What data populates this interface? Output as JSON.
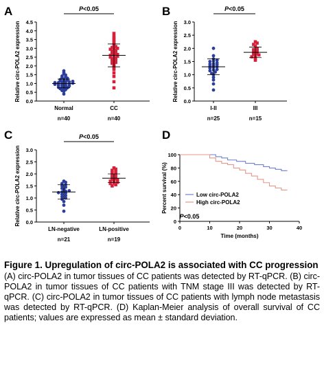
{
  "chart_data": [
    {
      "panel": "A",
      "type": "scatter",
      "ylabel": "Relative circ-POLA2 expression",
      "ylim": [
        0,
        4.5
      ],
      "yticks": [
        "0.0",
        "0.5",
        "1.0",
        "1.5",
        "2.0",
        "2.5",
        "3.0",
        "3.5",
        "4.0",
        "4.5"
      ],
      "significance": "P<0.05",
      "series": [
        {
          "category": "Normal",
          "n": "n=40",
          "color": "#2c3e9c",
          "marker": "circle",
          "mean": 1.0,
          "sd": 0.25,
          "values": [
            0.4,
            0.55,
            0.6,
            0.65,
            0.7,
            0.72,
            0.75,
            0.78,
            0.8,
            0.82,
            0.85,
            0.88,
            0.9,
            0.9,
            0.92,
            0.95,
            0.95,
            0.98,
            1.0,
            1.0,
            1.02,
            1.05,
            1.05,
            1.08,
            1.1,
            1.1,
            1.12,
            1.15,
            1.18,
            1.2,
            1.22,
            1.25,
            1.3,
            1.32,
            1.38,
            1.42,
            1.48,
            1.55,
            1.62,
            1.72
          ]
        },
        {
          "category": "CC",
          "n": "n=40",
          "color": "#d6203a",
          "marker": "square",
          "mean": 2.6,
          "sd": 0.65,
          "values": [
            0.75,
            1.1,
            1.4,
            1.6,
            1.8,
            1.9,
            2.0,
            2.1,
            2.15,
            2.2,
            2.25,
            2.3,
            2.35,
            2.4,
            2.45,
            2.5,
            2.5,
            2.55,
            2.6,
            2.6,
            2.65,
            2.7,
            2.7,
            2.75,
            2.8,
            2.85,
            2.9,
            2.95,
            3.0,
            3.0,
            3.05,
            3.1,
            3.15,
            3.2,
            3.3,
            3.4,
            3.5,
            3.6,
            3.7,
            3.85
          ]
        }
      ]
    },
    {
      "panel": "B",
      "type": "scatter",
      "ylabel": "Relative circ-POLA2 expression",
      "ylim": [
        0,
        3.0
      ],
      "yticks": [
        "0.0",
        "0.5",
        "1.0",
        "1.5",
        "2.0",
        "2.5",
        "3.0"
      ],
      "significance": "P<0.05",
      "series": [
        {
          "category": "I-II",
          "n": "n=25",
          "color": "#2c3e9c",
          "marker": "circle",
          "mean": 1.3,
          "sd": 0.3,
          "values": [
            0.42,
            0.65,
            0.8,
            0.9,
            1.0,
            1.05,
            1.1,
            1.15,
            1.18,
            1.2,
            1.25,
            1.28,
            1.3,
            1.32,
            1.35,
            1.38,
            1.4,
            1.42,
            1.45,
            1.5,
            1.52,
            1.55,
            1.6,
            1.72,
            2.0
          ]
        },
        {
          "category": "III",
          "n": "n=15",
          "color": "#d6203a",
          "marker": "square",
          "mean": 1.85,
          "sd": 0.2,
          "values": [
            1.55,
            1.62,
            1.68,
            1.72,
            1.75,
            1.78,
            1.8,
            1.85,
            1.9,
            1.95,
            2.0,
            2.08,
            2.15,
            2.2,
            2.25
          ]
        }
      ]
    },
    {
      "panel": "C",
      "type": "scatter",
      "ylabel": "Relative circ-POLA2 expression",
      "ylim": [
        0,
        3.0
      ],
      "yticks": [
        "0.0",
        "0.5",
        "1.0",
        "1.5",
        "2.0",
        "2.5",
        "3.0"
      ],
      "significance": "P<0.05",
      "series": [
        {
          "category": "LN-negative",
          "n": "n=21",
          "color": "#2c3e9c",
          "marker": "circle",
          "mean": 1.25,
          "sd": 0.3,
          "values": [
            0.45,
            0.7,
            0.85,
            0.95,
            1.0,
            1.05,
            1.1,
            1.15,
            1.2,
            1.22,
            1.25,
            1.28,
            1.3,
            1.35,
            1.4,
            1.45,
            1.5,
            1.55,
            1.6,
            1.65,
            1.7
          ]
        },
        {
          "category": "LN-positive",
          "n": "n=19",
          "color": "#d6203a",
          "marker": "square",
          "mean": 1.82,
          "sd": 0.18,
          "values": [
            1.5,
            1.55,
            1.6,
            1.62,
            1.65,
            1.7,
            1.72,
            1.75,
            1.78,
            1.8,
            1.85,
            1.9,
            1.95,
            2.0,
            2.05,
            2.1,
            2.15,
            2.2,
            2.25
          ]
        }
      ]
    },
    {
      "panel": "D",
      "type": "line",
      "ylabel": "Percent survival (%)",
      "xlabel": "Time (months)",
      "xlim": [
        0,
        40
      ],
      "ylim": [
        0,
        100
      ],
      "xticks": [
        "0",
        "10",
        "20",
        "30",
        "40"
      ],
      "yticks": [
        "0",
        "20",
        "40",
        "60",
        "80",
        "100"
      ],
      "annotation": "P<0.05",
      "series": [
        {
          "name": "Low circ-POLA2",
          "color": "#6f7fd0",
          "x": [
            0,
            10,
            12,
            14,
            16,
            19,
            22,
            25,
            28,
            30,
            32,
            34,
            36
          ],
          "y": [
            100,
            100,
            97,
            95,
            92,
            90,
            87,
            85,
            82,
            80,
            78,
            76,
            76
          ]
        },
        {
          "name": "High circ-POLA2",
          "color": "#e8958a",
          "x": [
            0,
            7,
            10,
            12,
            14,
            16,
            18,
            20,
            22,
            24,
            26,
            28,
            30,
            32,
            34,
            36
          ],
          "y": [
            100,
            100,
            95,
            90,
            87,
            85,
            80,
            77,
            72,
            68,
            63,
            58,
            53,
            50,
            47,
            47
          ]
        }
      ]
    }
  ],
  "panel_labels": [
    "A",
    "B",
    "C",
    "D"
  ],
  "caption": {
    "title": "Figure 1. Upregulation of circ-POLA2 is associated with CC progression",
    "body": "(A) circ-POLA2 in tumor tissues of CC patients was detected by RT-qPCR. (B) circ-POLA2 in tumor tissues of CC patients with TNM stage III was detected by RT-qPCR. (C) circ-POLA2 in tumor tissues of CC patients with lymph node metastasis was detected by RT-qPCR. (D) Kaplan-Meier analysis of overall survival of CC patients; values are expressed as mean ± standard deviation."
  }
}
